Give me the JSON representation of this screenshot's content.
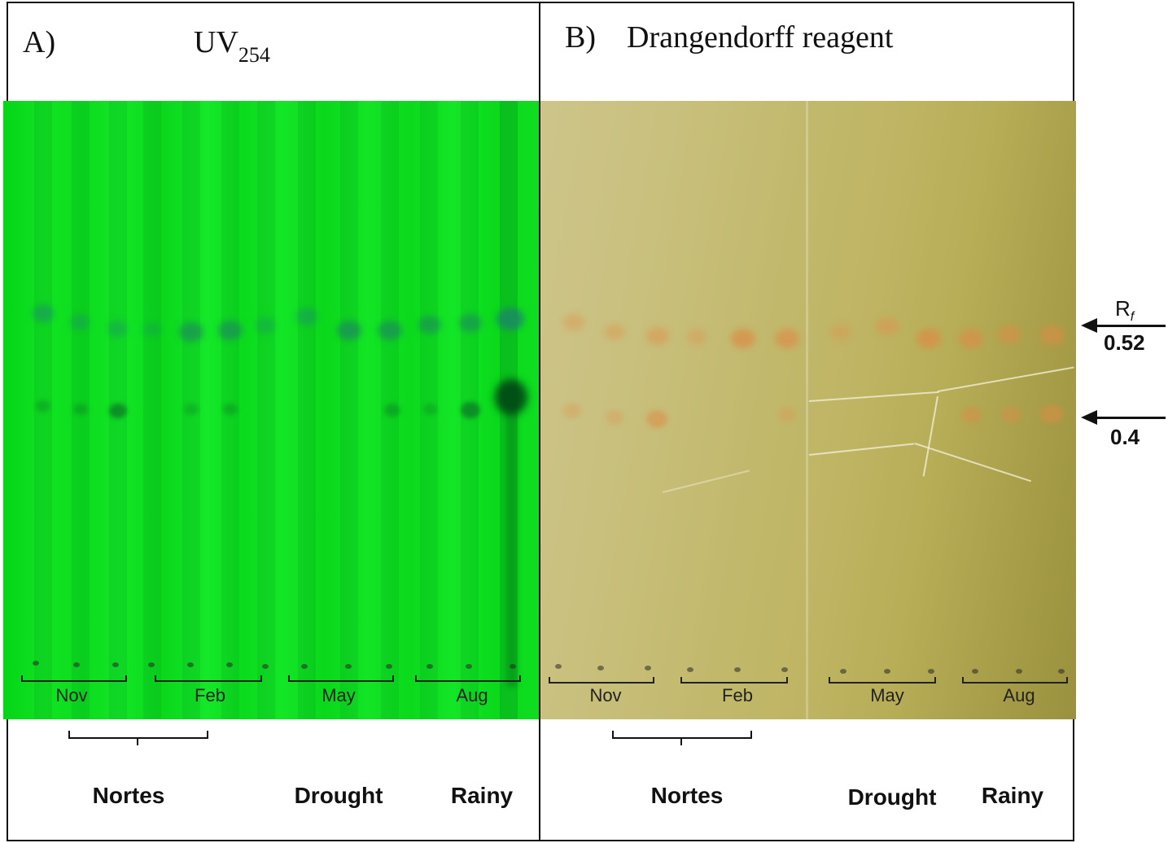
{
  "panel_a": {
    "label": "A)",
    "title_main": "UV",
    "title_sub": "254",
    "months": [
      "Nov",
      "Feb",
      "May",
      "Aug"
    ]
  },
  "panel_b": {
    "label": "B)",
    "title": "Drangendorff reagent",
    "months": [
      "Nov",
      "Feb",
      "May",
      "Aug"
    ]
  },
  "seasons": {
    "nortes": "Nortes",
    "drought": "Drought",
    "rainy": "Rainy"
  },
  "rf": {
    "symbol": "R",
    "symbol_sub": "f",
    "value_high": "0.52",
    "value_low": "0.4"
  },
  "colors": {
    "uv_plate": "#0ee01e",
    "dragendorff_plate": "#c2b66a",
    "spot_uv": "#1f9a55",
    "spot_dragendorff": "#d9a15a"
  }
}
